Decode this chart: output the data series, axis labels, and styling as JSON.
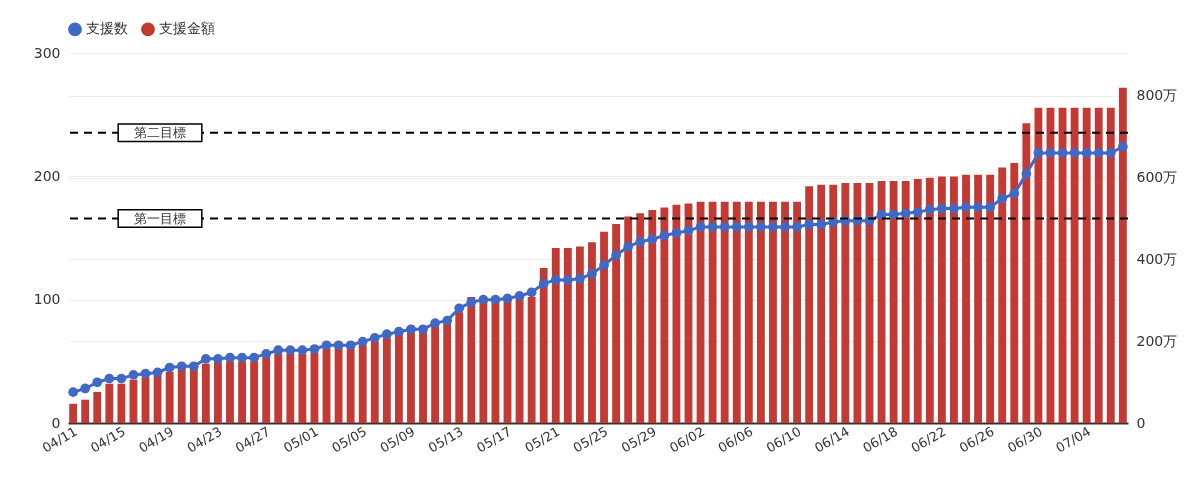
{
  "chart_data": {
    "type": "bar",
    "categories": [
      "04/11",
      null,
      null,
      null,
      "04/15",
      null,
      null,
      null,
      "04/19",
      null,
      null,
      null,
      "04/23",
      null,
      null,
      null,
      "04/27",
      null,
      null,
      null,
      "05/01",
      null,
      null,
      null,
      "05/05",
      null,
      null,
      null,
      "05/09",
      null,
      null,
      null,
      "05/13",
      null,
      null,
      null,
      "05/17",
      null,
      null,
      null,
      "05/21",
      null,
      null,
      null,
      "05/25",
      null,
      null,
      null,
      "05/29",
      null,
      null,
      null,
      "06/02",
      null,
      null,
      null,
      "06/06",
      null,
      null,
      null,
      "06/10",
      null,
      null,
      null,
      "06/14",
      null,
      null,
      null,
      "06/18",
      null,
      null,
      null,
      "06/22",
      null,
      null,
      null,
      "06/26",
      null,
      null,
      null,
      "06/30",
      null,
      null,
      null,
      "07/04",
      null,
      null,
      null
    ],
    "series": [
      {
        "name": "支援数",
        "type": "line",
        "color": "#4169c4",
        "marker": "circle",
        "values": [
          25,
          28,
          33,
          36,
          36,
          39,
          40,
          41,
          45,
          46,
          46,
          52,
          52,
          53,
          53,
          53,
          56,
          59,
          59,
          59,
          60,
          63,
          63,
          63,
          66,
          69,
          72,
          74,
          76,
          76,
          81,
          83,
          93,
          98,
          100,
          100,
          101,
          103,
          106,
          113,
          116,
          116,
          117,
          121,
          128,
          136,
          143,
          147,
          149,
          152,
          154,
          156,
          159,
          159,
          159,
          159,
          159,
          159,
          159,
          159,
          159,
          161,
          161,
          163,
          164,
          164,
          164,
          169,
          169,
          170,
          171,
          173,
          174,
          174,
          175,
          175,
          175,
          182,
          186,
          202,
          219,
          219,
          219,
          219,
          219,
          219,
          219,
          224
        ]
      },
      {
        "name": "支援金額",
        "axis": "y2",
        "color": "#c23a33",
        "values": [
          47,
          57,
          76,
          96,
          96,
          106,
          112,
          116,
          125,
          133,
          133,
          145,
          149,
          151,
          151,
          151,
          161,
          169,
          169,
          169,
          173,
          182,
          186,
          186,
          192,
          200,
          210,
          218,
          224,
          224,
          238,
          245,
          271,
          308,
          300,
          300,
          300,
          305,
          308,
          379,
          428,
          428,
          432,
          442,
          468,
          487,
          505,
          513,
          521,
          527,
          534,
          537,
          541,
          541,
          541,
          541,
          541,
          541,
          541,
          541,
          541,
          579,
          583,
          583,
          587,
          587,
          587,
          592,
          592,
          592,
          597,
          600,
          603,
          603,
          607,
          607,
          607,
          625,
          636,
          733,
          771,
          771,
          771,
          771,
          771,
          771,
          771,
          820
        ]
      }
    ],
    "ylim": [
      0,
      300
    ],
    "yticks": [
      0,
      100,
      200,
      300
    ],
    "y2lim": [
      0,
      905
    ],
    "y2ticks": [
      0,
      {
        "value": 200,
        "label": "200万"
      },
      {
        "value": 400,
        "label": "400万"
      },
      {
        "value": 600,
        "label": "600万"
      },
      {
        "value": 800,
        "label": "800万"
      }
    ],
    "ref_lines": [
      {
        "axis": "y2",
        "value": 500,
        "label": "第一目標",
        "color": "#000000",
        "line_style": "dashed"
      },
      {
        "axis": "y2",
        "value": 710,
        "label": "第二目標",
        "color": "#000000",
        "line_style": "dashed"
      }
    ],
    "grid": true,
    "legend": "top left"
  }
}
